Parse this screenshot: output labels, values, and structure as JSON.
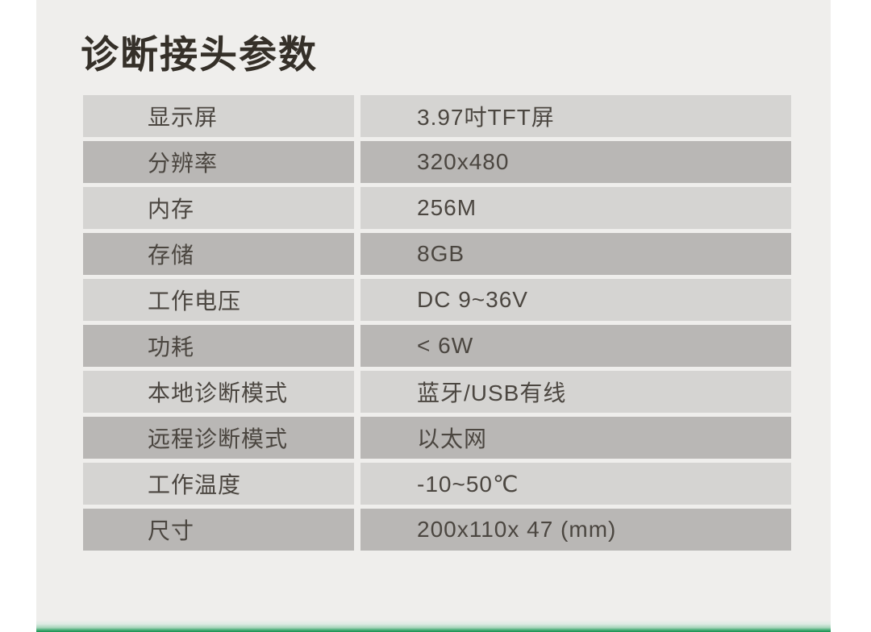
{
  "page": {
    "title": "诊断接头参数"
  },
  "table": {
    "rows": [
      {
        "label": "显示屏",
        "value": "3.97吋TFT屏"
      },
      {
        "label": "分辨率",
        "value": "320x480"
      },
      {
        "label": "内存",
        "value": "256M"
      },
      {
        "label": "存储",
        "value": "8GB"
      },
      {
        "label": "工作电压",
        "value": "DC 9~36V"
      },
      {
        "label": "功耗",
        "value": "< 6W"
      },
      {
        "label": "本地诊断模式",
        "value": "蓝牙/USB有线"
      },
      {
        "label": "远程诊断模式",
        "value": "以太网"
      },
      {
        "label": "工作温度",
        "value": "-10~50℃"
      },
      {
        "label": "尺寸",
        "value": "200x110x 47 (mm)"
      }
    ]
  },
  "colors": {
    "content_bg": "#efeeec",
    "row_light": "#d5d4d2",
    "row_dark": "#b9b7b5",
    "text": "#4b4640",
    "title_text": "#353029",
    "accent_green": "#148f4e"
  }
}
